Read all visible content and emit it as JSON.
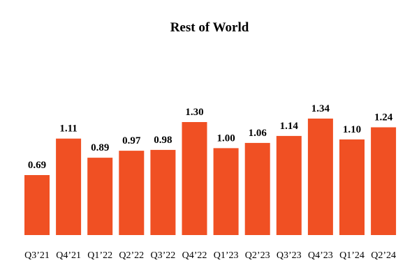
{
  "chart_data": {
    "type": "bar",
    "title": "Rest of World",
    "xlabel": "",
    "ylabel": "",
    "categories": [
      "Q3’21",
      "Q4’21",
      "Q1’22",
      "Q2’22",
      "Q3’22",
      "Q4’22",
      "Q1’23",
      "Q2’23",
      "Q3’23",
      "Q4’23",
      "Q1’24",
      "Q2’24"
    ],
    "values": [
      0.69,
      1.11,
      0.89,
      0.97,
      0.98,
      1.3,
      1.0,
      1.06,
      1.14,
      1.34,
      1.1,
      1.24
    ],
    "value_labels": [
      "0.69",
      "1.11",
      "0.89",
      "0.97",
      "0.98",
      "1.30",
      "1.00",
      "1.06",
      "1.14",
      "1.34",
      "1.10",
      "1.24"
    ],
    "ylim": [
      0,
      1.34
    ],
    "grid": false,
    "legend": "none",
    "bar_color": "#f05023"
  }
}
